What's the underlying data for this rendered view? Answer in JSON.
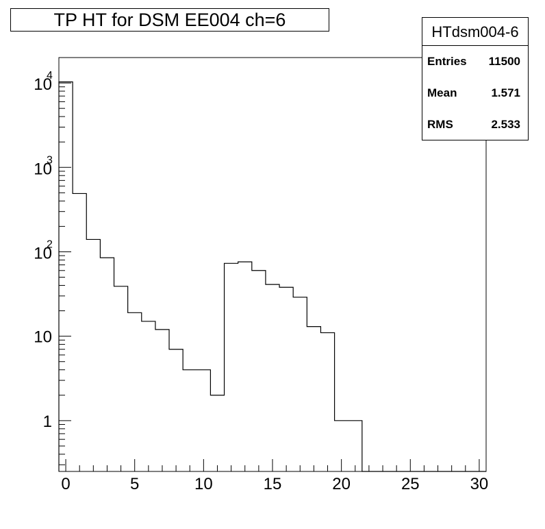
{
  "chart_data": {
    "type": "bar",
    "title": "TP HT for DSM EE004 ch=6",
    "xlabel": "",
    "ylabel": "",
    "xlim": [
      -0.5,
      30.5
    ],
    "ylim": [
      0.25,
      20000
    ],
    "y_scale": "log",
    "x_ticks": [
      {
        "value": 0,
        "label": "0"
      },
      {
        "value": 5,
        "label": "5"
      },
      {
        "value": 10,
        "label": "10"
      },
      {
        "value": 15,
        "label": "15"
      },
      {
        "value": 20,
        "label": "20"
      },
      {
        "value": 25,
        "label": "25"
      },
      {
        "value": 30,
        "label": "30"
      }
    ],
    "y_ticks": [
      {
        "value": 1,
        "base": "1",
        "exp": ""
      },
      {
        "value": 10,
        "base": "10",
        "exp": ""
      },
      {
        "value": 100,
        "base": "10",
        "exp": "2"
      },
      {
        "value": 1000,
        "base": "10",
        "exp": "3"
      },
      {
        "value": 10000,
        "base": "10",
        "exp": "4"
      }
    ],
    "bin_width": 1,
    "bins": [
      0,
      1,
      2,
      3,
      4,
      5,
      6,
      7,
      8,
      9,
      10,
      11,
      12,
      13,
      14,
      15,
      16,
      17,
      18,
      19,
      20,
      21,
      22,
      23,
      24,
      25,
      26,
      27,
      28,
      29,
      30
    ],
    "values": [
      10300,
      490,
      140,
      85,
      39,
      19,
      15,
      12,
      7,
      4,
      4,
      2,
      73,
      76,
      60,
      41,
      38,
      29,
      13,
      11,
      1,
      1,
      0,
      0,
      0,
      0,
      0,
      0,
      0,
      0,
      0
    ],
    "stats": {
      "name": "HTdsm004-6",
      "entries_label": "Entries",
      "entries": "11500",
      "mean_label": "Mean",
      "mean": "1.571",
      "rms_label": "RMS",
      "rms": "2.533"
    },
    "grid": false,
    "legend": "top-right"
  }
}
